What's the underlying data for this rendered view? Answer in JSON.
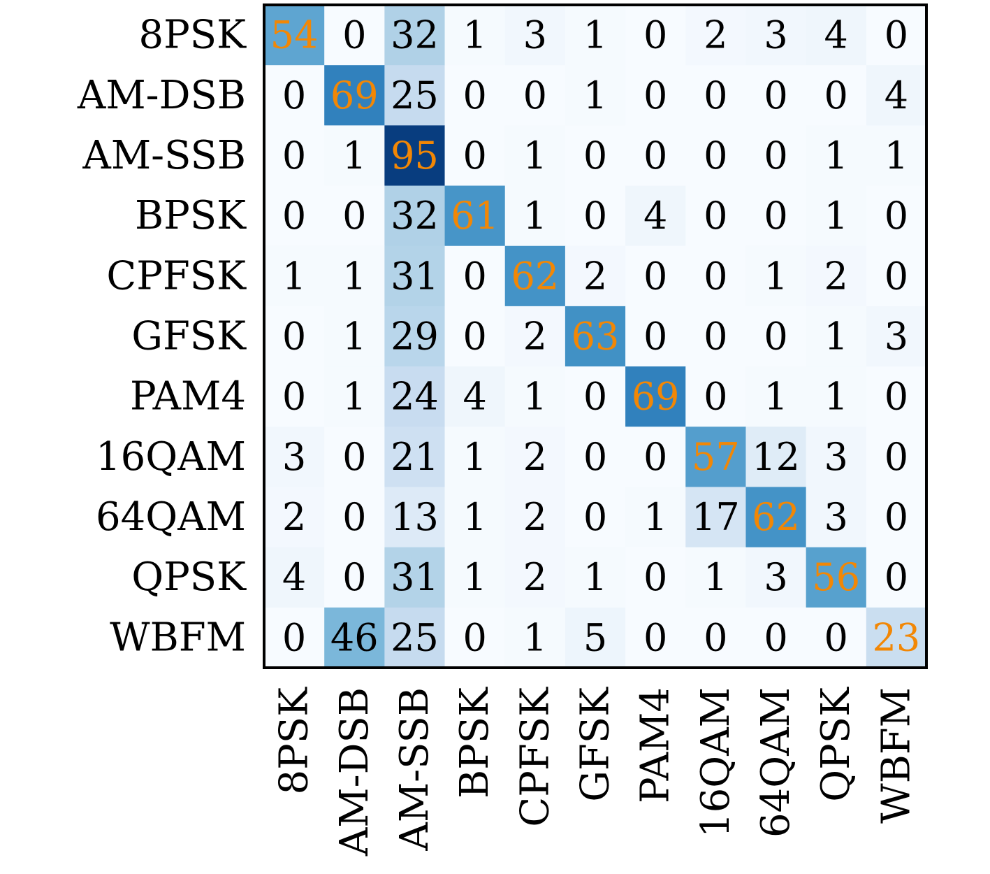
{
  "chart_data": {
    "type": "heatmap",
    "title": "",
    "xlabel": "",
    "ylabel": "",
    "x_categories": [
      "8PSK",
      "AM-DSB",
      "AM-SSB",
      "BPSK",
      "CPFSK",
      "GFSK",
      "PAM4",
      "16QAM",
      "64QAM",
      "QPSK",
      "WBFM"
    ],
    "y_categories": [
      "8PSK",
      "AM-DSB",
      "AM-SSB",
      "BPSK",
      "CPFSK",
      "GFSK",
      "PAM4",
      "16QAM",
      "64QAM",
      "QPSK",
      "WBFM"
    ],
    "values": [
      [
        54,
        0,
        32,
        1,
        3,
        1,
        0,
        2,
        3,
        4,
        0
      ],
      [
        0,
        69,
        25,
        0,
        0,
        1,
        0,
        0,
        0,
        0,
        4
      ],
      [
        0,
        1,
        95,
        0,
        1,
        0,
        0,
        0,
        0,
        1,
        1
      ],
      [
        0,
        0,
        32,
        61,
        1,
        0,
        4,
        0,
        0,
        1,
        0
      ],
      [
        1,
        1,
        31,
        0,
        62,
        2,
        0,
        0,
        1,
        2,
        0
      ],
      [
        0,
        1,
        29,
        0,
        2,
        63,
        0,
        0,
        0,
        1,
        3
      ],
      [
        0,
        1,
        24,
        4,
        1,
        0,
        69,
        0,
        1,
        1,
        0
      ],
      [
        3,
        0,
        21,
        1,
        2,
        0,
        0,
        57,
        12,
        3,
        0
      ],
      [
        2,
        0,
        13,
        1,
        2,
        0,
        1,
        17,
        62,
        3,
        0
      ],
      [
        4,
        0,
        31,
        1,
        2,
        1,
        0,
        1,
        3,
        56,
        0
      ],
      [
        0,
        46,
        25,
        0,
        1,
        5,
        0,
        0,
        0,
        0,
        23
      ]
    ],
    "value_range": [
      0,
      100
    ],
    "colormap": "Blues",
    "grid": false,
    "legend": "none",
    "diagonal_text_color": "#f28705",
    "offdiagonal_text_color": "#000000",
    "frame_color": "#000000"
  }
}
